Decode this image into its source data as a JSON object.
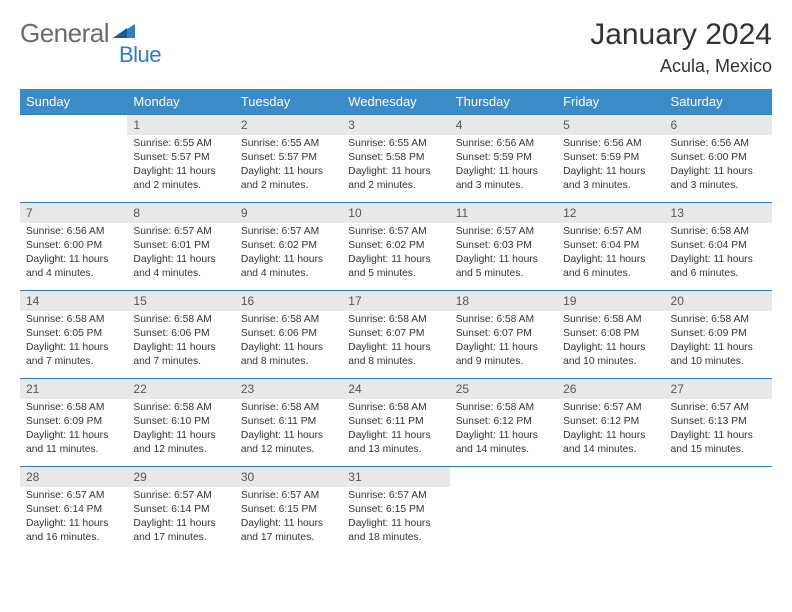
{
  "logo": {
    "text1": "General",
    "text2": "Blue"
  },
  "title": "January 2024",
  "location": "Acula, Mexico",
  "colors": {
    "header_bg": "#3b8bc8",
    "header_text": "#ffffff",
    "daynum_bg": "#e8e8e8",
    "border": "#2d7fc1",
    "logo_gray": "#6b6b6b",
    "logo_blue": "#2d7fc1"
  },
  "day_headers": [
    "Sunday",
    "Monday",
    "Tuesday",
    "Wednesday",
    "Thursday",
    "Friday",
    "Saturday"
  ],
  "weeks": [
    [
      null,
      {
        "n": "1",
        "sr": "6:55 AM",
        "ss": "5:57 PM",
        "dl": "11 hours and 2 minutes."
      },
      {
        "n": "2",
        "sr": "6:55 AM",
        "ss": "5:57 PM",
        "dl": "11 hours and 2 minutes."
      },
      {
        "n": "3",
        "sr": "6:55 AM",
        "ss": "5:58 PM",
        "dl": "11 hours and 2 minutes."
      },
      {
        "n": "4",
        "sr": "6:56 AM",
        "ss": "5:59 PM",
        "dl": "11 hours and 3 minutes."
      },
      {
        "n": "5",
        "sr": "6:56 AM",
        "ss": "5:59 PM",
        "dl": "11 hours and 3 minutes."
      },
      {
        "n": "6",
        "sr": "6:56 AM",
        "ss": "6:00 PM",
        "dl": "11 hours and 3 minutes."
      }
    ],
    [
      {
        "n": "7",
        "sr": "6:56 AM",
        "ss": "6:00 PM",
        "dl": "11 hours and 4 minutes."
      },
      {
        "n": "8",
        "sr": "6:57 AM",
        "ss": "6:01 PM",
        "dl": "11 hours and 4 minutes."
      },
      {
        "n": "9",
        "sr": "6:57 AM",
        "ss": "6:02 PM",
        "dl": "11 hours and 4 minutes."
      },
      {
        "n": "10",
        "sr": "6:57 AM",
        "ss": "6:02 PM",
        "dl": "11 hours and 5 minutes."
      },
      {
        "n": "11",
        "sr": "6:57 AM",
        "ss": "6:03 PM",
        "dl": "11 hours and 5 minutes."
      },
      {
        "n": "12",
        "sr": "6:57 AM",
        "ss": "6:04 PM",
        "dl": "11 hours and 6 minutes."
      },
      {
        "n": "13",
        "sr": "6:58 AM",
        "ss": "6:04 PM",
        "dl": "11 hours and 6 minutes."
      }
    ],
    [
      {
        "n": "14",
        "sr": "6:58 AM",
        "ss": "6:05 PM",
        "dl": "11 hours and 7 minutes."
      },
      {
        "n": "15",
        "sr": "6:58 AM",
        "ss": "6:06 PM",
        "dl": "11 hours and 7 minutes."
      },
      {
        "n": "16",
        "sr": "6:58 AM",
        "ss": "6:06 PM",
        "dl": "11 hours and 8 minutes."
      },
      {
        "n": "17",
        "sr": "6:58 AM",
        "ss": "6:07 PM",
        "dl": "11 hours and 8 minutes."
      },
      {
        "n": "18",
        "sr": "6:58 AM",
        "ss": "6:07 PM",
        "dl": "11 hours and 9 minutes."
      },
      {
        "n": "19",
        "sr": "6:58 AM",
        "ss": "6:08 PM",
        "dl": "11 hours and 10 minutes."
      },
      {
        "n": "20",
        "sr": "6:58 AM",
        "ss": "6:09 PM",
        "dl": "11 hours and 10 minutes."
      }
    ],
    [
      {
        "n": "21",
        "sr": "6:58 AM",
        "ss": "6:09 PM",
        "dl": "11 hours and 11 minutes."
      },
      {
        "n": "22",
        "sr": "6:58 AM",
        "ss": "6:10 PM",
        "dl": "11 hours and 12 minutes."
      },
      {
        "n": "23",
        "sr": "6:58 AM",
        "ss": "6:11 PM",
        "dl": "11 hours and 12 minutes."
      },
      {
        "n": "24",
        "sr": "6:58 AM",
        "ss": "6:11 PM",
        "dl": "11 hours and 13 minutes."
      },
      {
        "n": "25",
        "sr": "6:58 AM",
        "ss": "6:12 PM",
        "dl": "11 hours and 14 minutes."
      },
      {
        "n": "26",
        "sr": "6:57 AM",
        "ss": "6:12 PM",
        "dl": "11 hours and 14 minutes."
      },
      {
        "n": "27",
        "sr": "6:57 AM",
        "ss": "6:13 PM",
        "dl": "11 hours and 15 minutes."
      }
    ],
    [
      {
        "n": "28",
        "sr": "6:57 AM",
        "ss": "6:14 PM",
        "dl": "11 hours and 16 minutes."
      },
      {
        "n": "29",
        "sr": "6:57 AM",
        "ss": "6:14 PM",
        "dl": "11 hours and 17 minutes."
      },
      {
        "n": "30",
        "sr": "6:57 AM",
        "ss": "6:15 PM",
        "dl": "11 hours and 17 minutes."
      },
      {
        "n": "31",
        "sr": "6:57 AM",
        "ss": "6:15 PM",
        "dl": "11 hours and 18 minutes."
      },
      null,
      null,
      null
    ]
  ],
  "labels": {
    "sunrise": "Sunrise:",
    "sunset": "Sunset:",
    "daylight": "Daylight:"
  }
}
